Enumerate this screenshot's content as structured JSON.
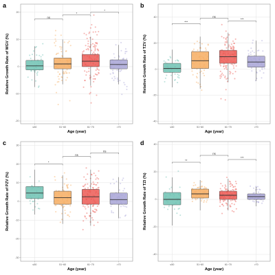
{
  "colors": {
    "groups": [
      "#6fc2b3",
      "#f6ad62",
      "#ec5a55",
      "#a8a5d6"
    ],
    "grid": "#e3e3e3",
    "frame": "#9a9a9a",
    "bracket": "#555555"
  },
  "chart_data": [
    {
      "panel_label": "a",
      "type": "box",
      "title": "",
      "xlabel": "Age (year)",
      "ylabel": "Relative Growth Rate of WGV (%)",
      "categories": [
        "≤50",
        "51~60",
        "61~70",
        ">70"
      ],
      "ylim": [
        -21,
        23
      ],
      "yticks": [
        -20,
        -10,
        0,
        10,
        20
      ],
      "grid": true,
      "boxes": [
        {
          "q1": -1.2,
          "median": 0.3,
          "q3": 2.3,
          "whisker_low": -7.5,
          "whisker_high": 7.5
        },
        {
          "q1": -0.8,
          "median": 1.0,
          "q3": 3.2,
          "whisker_low": -6.5,
          "whisker_high": 10
        },
        {
          "q1": 0.0,
          "median": 2.0,
          "q3": 4.5,
          "whisker_low": -7,
          "whisker_high": 11
        },
        {
          "q1": -0.8,
          "median": 0.8,
          "q3": 2.5,
          "whisker_low": -6.5,
          "whisker_high": 8
        }
      ],
      "points_per_group": [
        40,
        70,
        120,
        55
      ],
      "point_spread": [
        3.5,
        5,
        6,
        4
      ],
      "comparisons": [
        {
          "from": 0,
          "to": 1,
          "label": "ns",
          "y": 17.5
        },
        {
          "from": 1,
          "to": 2,
          "label": "*",
          "y": 19
        },
        {
          "from": 2,
          "to": 3,
          "label": "*",
          "y": 20
        }
      ]
    },
    {
      "panel_label": "b",
      "type": "box",
      "title": "",
      "xlabel": "Age (year)",
      "ylabel": "Relative Growth Rate of TZV (%)",
      "categories": [
        "≤50",
        "51~60",
        "61~70",
        ">70"
      ],
      "ylim": [
        -42,
        50
      ],
      "yticks": [
        -40,
        -20,
        0,
        20,
        40
      ],
      "grid": true,
      "boxes": [
        {
          "q1": -2.5,
          "median": 0.5,
          "q3": 4.5,
          "whisker_low": -14,
          "whisker_high": 15
        },
        {
          "q1": 0.5,
          "median": 6.5,
          "q3": 13.5,
          "whisker_low": -15,
          "whisker_high": 25
        },
        {
          "q1": 4.5,
          "median": 9.5,
          "q3": 14.5,
          "whisker_low": -10,
          "whisker_high": 28
        },
        {
          "q1": 1.5,
          "median": 5.5,
          "q3": 10,
          "whisker_low": -9,
          "whisker_high": 22
        }
      ],
      "points_per_group": [
        40,
        70,
        120,
        55
      ],
      "point_spread": [
        6,
        9,
        10,
        7
      ],
      "comparisons": [
        {
          "from": 0,
          "to": 1,
          "label": "***",
          "y": 35
        },
        {
          "from": 1,
          "to": 2,
          "label": "ns",
          "y": 39
        },
        {
          "from": 2,
          "to": 3,
          "label": "***",
          "y": 37
        }
      ]
    },
    {
      "panel_label": "c",
      "type": "box",
      "title": "",
      "xlabel": "Age (year)",
      "ylabel": "Relative Growth Rate of PZV (%)",
      "categories": [
        "≤50",
        "51~60",
        "61~70",
        ">70"
      ],
      "ylim": [
        -32,
        32
      ],
      "yticks": [
        -30,
        -20,
        -10,
        0,
        10,
        20,
        30
      ],
      "grid": true,
      "boxes": [
        {
          "q1": 1.5,
          "median": 4.5,
          "q3": 8,
          "whisker_low": -7,
          "whisker_high": 17
        },
        {
          "q1": -1.5,
          "median": 2.0,
          "q3": 5.5,
          "whisker_low": -12,
          "whisker_high": 14
        },
        {
          "q1": -1.5,
          "median": 2.5,
          "q3": 6.5,
          "whisker_low": -13,
          "whisker_high": 17
        },
        {
          "q1": -1.5,
          "median": 1.0,
          "q3": 4.5,
          "whisker_low": -9,
          "whisker_high": 13
        }
      ],
      "points_per_group": [
        40,
        70,
        120,
        55
      ],
      "point_spread": [
        5,
        6,
        7,
        5
      ],
      "comparisons": [
        {
          "from": 0,
          "to": 1,
          "label": "*",
          "y": 20
        },
        {
          "from": 1,
          "to": 2,
          "label": "ns",
          "y": 24
        },
        {
          "from": 2,
          "to": 3,
          "label": "ns",
          "y": 26
        }
      ]
    },
    {
      "panel_label": "d",
      "type": "box",
      "title": "",
      "xlabel": "Age (year)",
      "ylabel": "Relative Growth Rate of TZI (%)",
      "categories": [
        "≤50",
        "51~60",
        "61~70",
        ">70"
      ],
      "ylim": [
        -45,
        42
      ],
      "yticks": [
        -40,
        -20,
        0,
        20,
        40
      ],
      "grid": true,
      "boxes": [
        {
          "q1": -4,
          "median": 0.0,
          "q3": 5,
          "whisker_low": -19,
          "whisker_high": 16
        },
        {
          "q1": 1,
          "median": 4,
          "q3": 7.5,
          "whisker_low": -8,
          "whisker_high": 14
        },
        {
          "q1": 0,
          "median": 3,
          "q3": 6,
          "whisker_low": -8,
          "whisker_high": 15
        },
        {
          "q1": 0,
          "median": 2,
          "q3": 4,
          "whisker_low": -5,
          "whisker_high": 9
        }
      ],
      "points_per_group": [
        40,
        70,
        120,
        55
      ],
      "point_spread": [
        6,
        4,
        5,
        3
      ],
      "comparisons": [
        {
          "from": 0,
          "to": 1,
          "label": "**",
          "y": 27
        },
        {
          "from": 1,
          "to": 2,
          "label": "ns",
          "y": 32
        },
        {
          "from": 2,
          "to": 3,
          "label": "***",
          "y": 29
        }
      ]
    }
  ]
}
